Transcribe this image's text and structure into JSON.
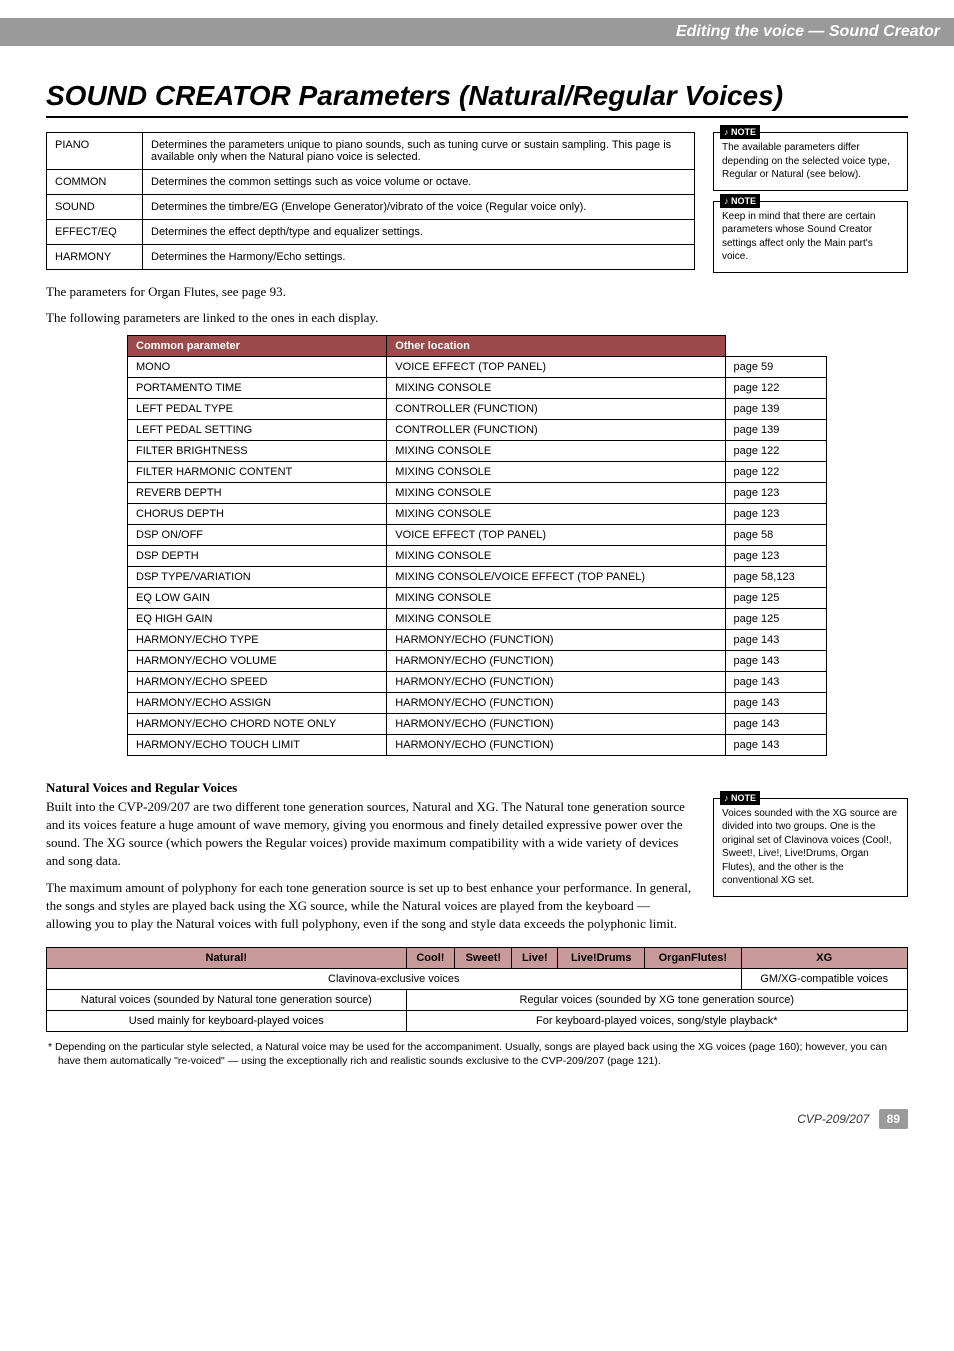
{
  "section_label": "Editing the voice  —  Sound Creator",
  "main_title": "SOUND CREATOR Parameters (Natural/Regular Voices)",
  "param_table": {
    "rows": [
      {
        "cat": "PIANO",
        "desc": "Determines the parameters unique to piano sounds, such as tuning curve or sustain sampling. This page is available only when the Natural piano voice is selected."
      },
      {
        "cat": "COMMON",
        "desc": "Determines the common settings such as voice volume or octave."
      },
      {
        "cat": "SOUND",
        "desc": "Determines the timbre/EG (Envelope Generator)/vibrato of the voice (Regular voice only)."
      },
      {
        "cat": "EFFECT/EQ",
        "desc": "Determines the effect depth/type and equalizer settings."
      },
      {
        "cat": "HARMONY",
        "desc": "Determines the Harmony/Echo settings."
      }
    ]
  },
  "note1": "The available parameters differ depending on the selected voice type, Regular or Natural (see below).",
  "note2": "Keep in mind that there are certain parameters whose Sound Creator settings affect only the Main part's voice.",
  "body_organ": "The parameters for Organ Flutes, see page 93.",
  "body_linked": "The following parameters are linked to the ones in each display.",
  "linked_table": {
    "headers": [
      "Common parameter",
      "Other location",
      ""
    ],
    "rows": [
      [
        "MONO",
        "VOICE EFFECT (TOP PANEL)",
        "page 59"
      ],
      [
        "PORTAMENTO TIME",
        "MIXING CONSOLE",
        "page 122"
      ],
      [
        "LEFT PEDAL TYPE",
        "CONTROLLER (FUNCTION)",
        "page 139"
      ],
      [
        "LEFT PEDAL SETTING",
        "CONTROLLER (FUNCTION)",
        "page 139"
      ],
      [
        "FILTER BRIGHTNESS",
        "MIXING CONSOLE",
        "page 122"
      ],
      [
        "FILTER HARMONIC CONTENT",
        "MIXING CONSOLE",
        "page 122"
      ],
      [
        "REVERB DEPTH",
        "MIXING CONSOLE",
        "page 123"
      ],
      [
        "CHORUS DEPTH",
        "MIXING CONSOLE",
        "page 123"
      ],
      [
        "DSP ON/OFF",
        "VOICE EFFECT (TOP PANEL)",
        "page 58"
      ],
      [
        "DSP DEPTH",
        "MIXING CONSOLE",
        "page 123"
      ],
      [
        "DSP TYPE/VARIATION",
        "MIXING CONSOLE/VOICE EFFECT (TOP PANEL)",
        "page 58,123"
      ],
      [
        "EQ LOW GAIN",
        "MIXING CONSOLE",
        "page 125"
      ],
      [
        "EQ HIGH GAIN",
        "MIXING CONSOLE",
        "page 125"
      ],
      [
        "HARMONY/ECHO TYPE",
        "HARMONY/ECHO (FUNCTION)",
        "page 143"
      ],
      [
        "HARMONY/ECHO VOLUME",
        "HARMONY/ECHO (FUNCTION)",
        "page 143"
      ],
      [
        "HARMONY/ECHO SPEED",
        "HARMONY/ECHO (FUNCTION)",
        "page 143"
      ],
      [
        "HARMONY/ECHO ASSIGN",
        "HARMONY/ECHO (FUNCTION)",
        "page 143"
      ],
      [
        "HARMONY/ECHO CHORD NOTE ONLY",
        "HARMONY/ECHO (FUNCTION)",
        "page 143"
      ],
      [
        "HARMONY/ECHO TOUCH LIMIT",
        "HARMONY/ECHO (FUNCTION)",
        "page 143"
      ]
    ]
  },
  "natural_heading": "Natural Voices and Regular Voices",
  "natural_body1": "Built into the CVP-209/207 are two different tone generation sources, Natural and XG. The Natural tone generation source and its voices feature a huge amount of wave memory, giving you enormous and finely detailed expressive power over the sound. The XG source (which powers the Regular voices) provide maximum compatibility with a wide variety of devices and song data.",
  "natural_body2": "The maximum amount of polyphony for each tone generation source is set up to best enhance your performance. In general, the songs and styles are played back using the XG source, while the Natural voices are played from the keyboard — allowing you to play the Natural voices with full polyphony, even if the song and style data exceeds the polyphonic limit.",
  "note3": "Voices sounded with the XG source are divided into two groups. One is the original set of Clavinova voices (Cool!, Sweet!, Live!, Live!Drums, Organ Flutes), and the other is the conventional XG set.",
  "voices_table": {
    "headers": [
      "Natural!",
      "Cool!",
      "Sweet!",
      "Live!",
      "Live!Drums",
      "OrganFlutes!",
      "XG"
    ],
    "row1": {
      "left": "",
      "span_text": "Clavinova-exclusive voices",
      "right": "GM/XG-compatible voices"
    },
    "row2": {
      "left": "Natural voices (sounded by Natural tone generation source)",
      "span_text": "Regular voices (sounded by XG tone generation source)"
    },
    "row3": {
      "left": "Used mainly for keyboard-played voices",
      "span_text": "For keyboard-played voices, song/style playback*"
    }
  },
  "footnote": "*   Depending on the particular style selected, a Natural voice may be used for the accompaniment. Usually, songs are played back using the XG voices (page 160); however, you can have them automatically \"re-voiced\" — using the exceptionally rich and realistic sounds exclusive to the CVP-209/207 (page 121).",
  "footer_model": "CVP-209/207",
  "footer_page": "89",
  "note_label": "NOTE",
  "colors": {
    "header_gray": "#9a9a9a",
    "table_header_red": "#9a4a4a",
    "voices_header_pink": "#c89a9a",
    "text": "#000000",
    "bg": "#ffffff"
  }
}
